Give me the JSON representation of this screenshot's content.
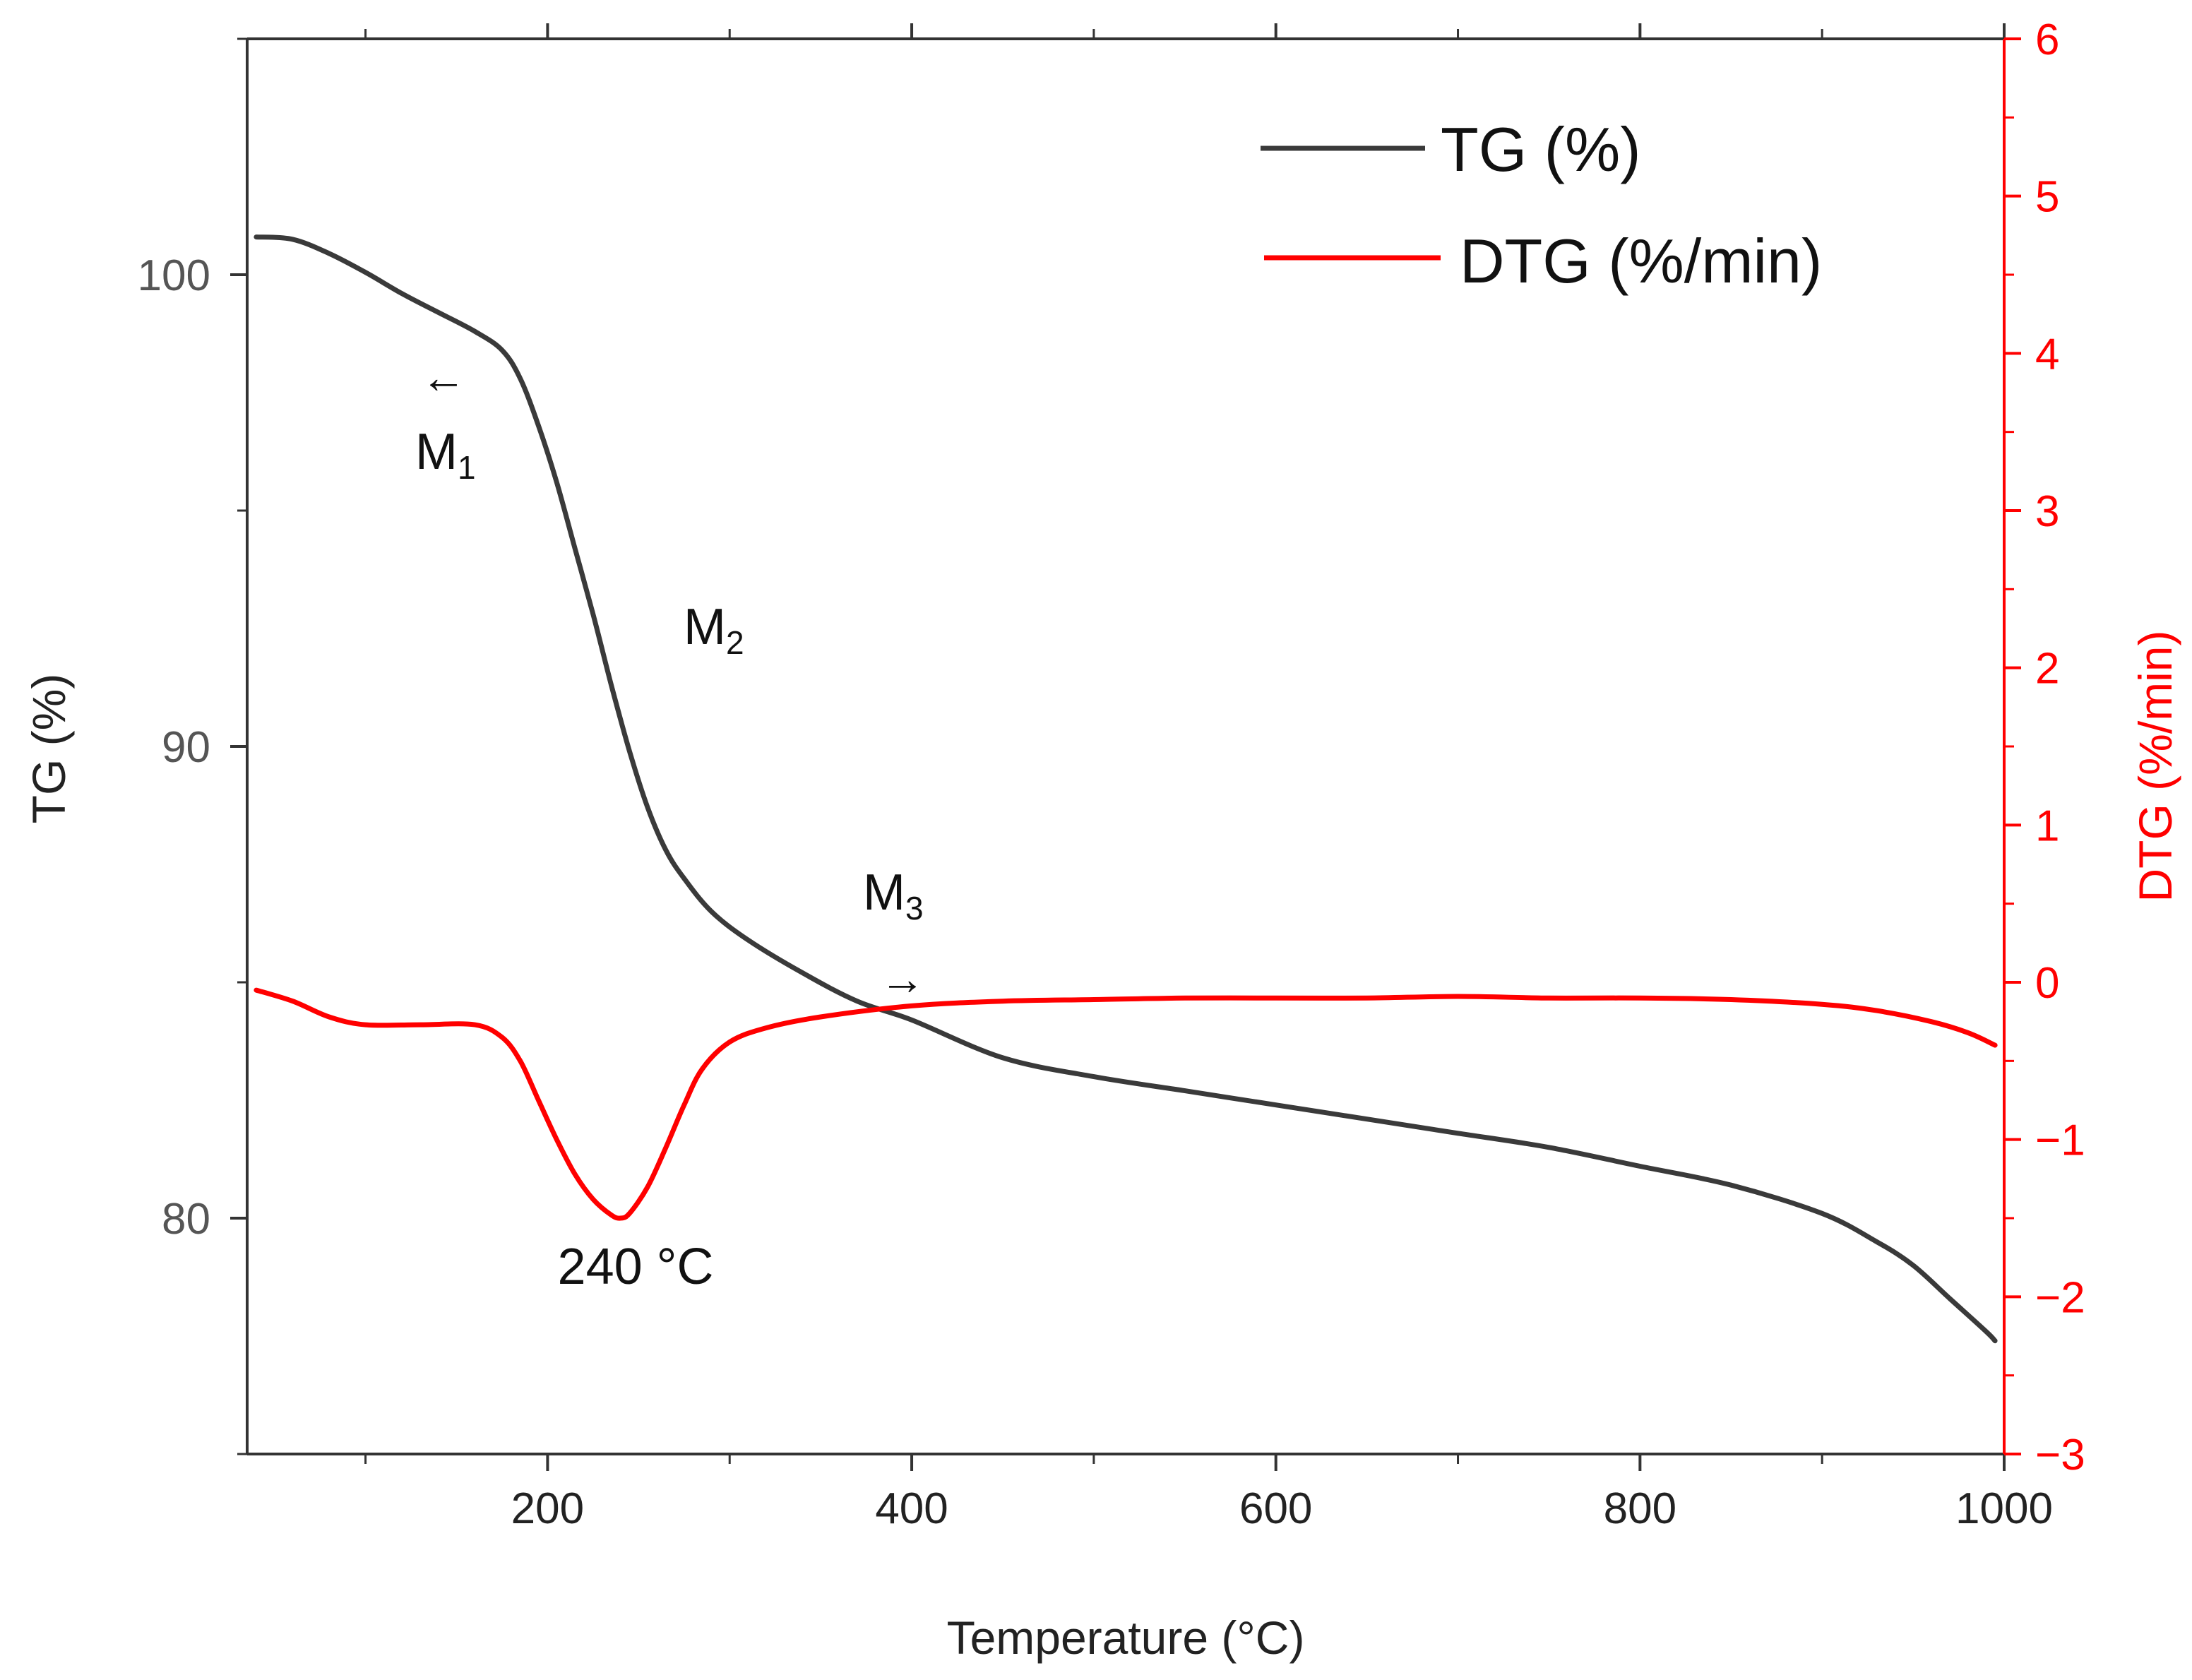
{
  "chart_data": {
    "type": "line",
    "xlabel": "Temperature (°C)",
    "ylabel_left": "TG (%)",
    "ylabel_right": "DTG (%/min)",
    "xlim": [
      35,
      1000
    ],
    "ylim_left": [
      75,
      105
    ],
    "ylim_right": [
      -3,
      6
    ],
    "x_ticks": [
      200,
      400,
      600,
      800,
      1000
    ],
    "x_tick_labels": [
      "200",
      "400",
      "600",
      "800",
      "1000"
    ],
    "x_minor_ticks": [
      100,
      300,
      500,
      700,
      900
    ],
    "y_left_ticks": [
      80,
      90,
      100
    ],
    "y_left_tick_labels": [
      "80",
      "90",
      "100"
    ],
    "y_left_minor_ticks": [
      75,
      85,
      95,
      105
    ],
    "y_right_ticks": [
      -3,
      -2,
      -1,
      0,
      1,
      2,
      3,
      4,
      5,
      6
    ],
    "y_right_tick_labels": [
      "−3",
      "−2",
      "−1",
      "0",
      "1",
      "2",
      "3",
      "4",
      "5",
      "6"
    ],
    "y_right_minor_ticks": [
      -2.5,
      -1.5,
      -0.5,
      0.5,
      1.5,
      2.5,
      3.5,
      4.5,
      5.5
    ],
    "series": [
      {
        "name": "TG (%)",
        "axis": "left",
        "color": "#3a3a3a",
        "x": [
          40,
          60,
          80,
          100,
          120,
          140,
          160,
          175,
          185,
          195,
          205,
          215,
          225,
          235,
          245,
          255,
          265,
          275,
          290,
          310,
          340,
          370,
          400,
          450,
          500,
          550,
          600,
          650,
          700,
          750,
          800,
          850,
          900,
          930,
          950,
          970,
          990,
          995
        ],
        "y": [
          100.8,
          100.75,
          100.45,
          100.05,
          99.6,
          99.2,
          98.8,
          98.4,
          97.8,
          96.8,
          95.6,
          94.2,
          92.8,
          91.3,
          89.9,
          88.7,
          87.8,
          87.2,
          86.5,
          85.9,
          85.2,
          84.6,
          84.2,
          83.4,
          83.0,
          82.7,
          82.4,
          82.1,
          81.8,
          81.5,
          81.1,
          80.7,
          80.1,
          79.5,
          79.0,
          78.3,
          77.6,
          77.4
        ]
      },
      {
        "name": "DTG (%/min)",
        "axis": "right",
        "color": "#ff0000",
        "x": [
          40,
          60,
          80,
          100,
          130,
          160,
          175,
          185,
          195,
          205,
          215,
          225,
          235,
          240,
          245,
          255,
          265,
          275,
          285,
          300,
          320,
          350,
          400,
          450,
          500,
          550,
          600,
          650,
          700,
          750,
          800,
          850,
          900,
          930,
          960,
          980,
          995
        ],
        "y": [
          -0.05,
          -0.12,
          -0.22,
          -0.27,
          -0.27,
          -0.27,
          -0.35,
          -0.5,
          -0.75,
          -1.0,
          -1.22,
          -1.38,
          -1.48,
          -1.5,
          -1.47,
          -1.3,
          -1.05,
          -0.78,
          -0.55,
          -0.38,
          -0.29,
          -0.22,
          -0.15,
          -0.12,
          -0.11,
          -0.1,
          -0.1,
          -0.1,
          -0.09,
          -0.1,
          -0.1,
          -0.11,
          -0.14,
          -0.18,
          -0.25,
          -0.32,
          -0.4
        ]
      }
    ],
    "legend": {
      "position": "top-right",
      "entries": [
        {
          "label": "TG (%)",
          "color": "#3a3a3a"
        },
        {
          "label": "DTG (%/min)",
          "color": "#ff0000"
        }
      ]
    },
    "annotations": {
      "m1": {
        "main": "M",
        "sub": "1",
        "arrow": "←"
      },
      "m2": {
        "main": "M",
        "sub": "2"
      },
      "m3": {
        "main": "M",
        "sub": "3",
        "arrow": "→"
      },
      "peak": {
        "text": "240 °C",
        "x": 240,
        "y": -1.5
      }
    },
    "colors": {
      "axes": "#333333",
      "right_axis": "#ff0000"
    }
  }
}
